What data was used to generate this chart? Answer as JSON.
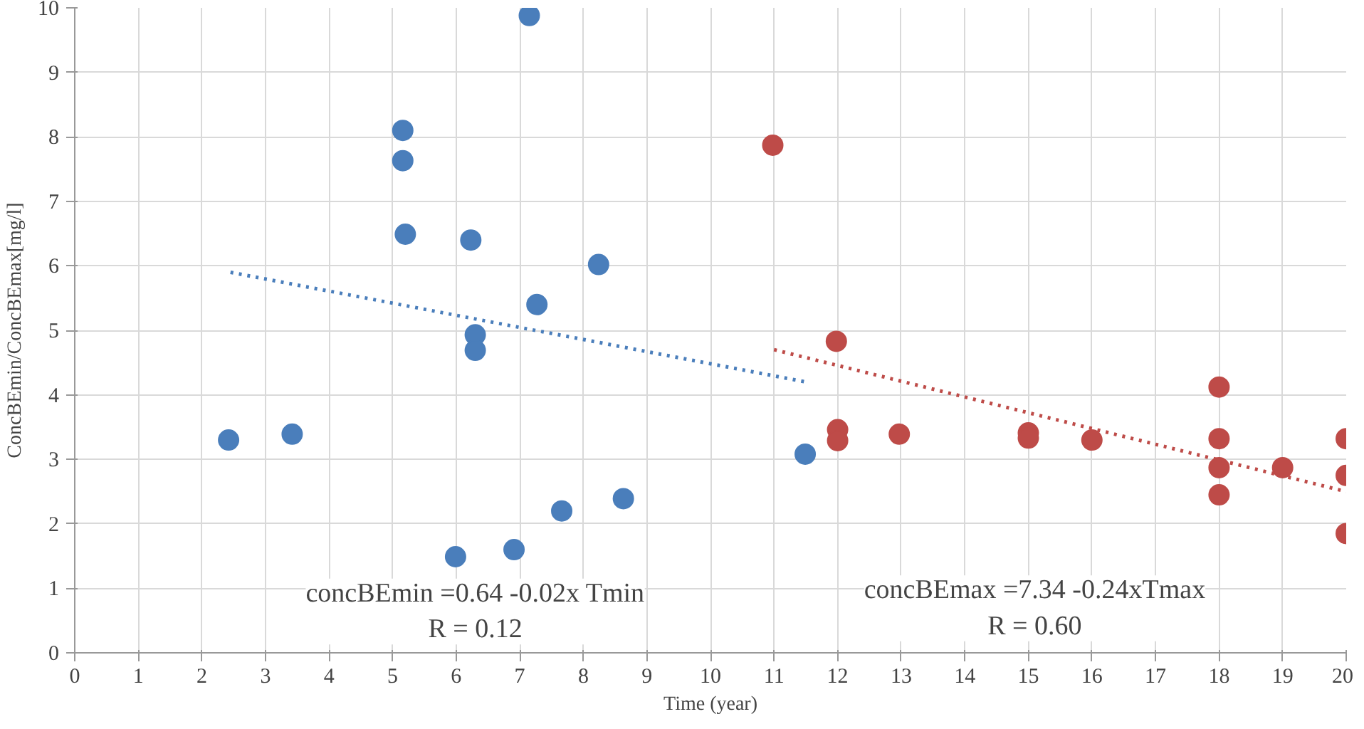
{
  "chart_data": {
    "type": "scatter",
    "xlabel": "Time (year)",
    "ylabel": "ConcBEmin/ConcBEmax[mg/l]",
    "xlim": [
      0,
      20
    ],
    "ylim": [
      0,
      10
    ],
    "xticks": [
      0,
      1,
      2,
      3,
      4,
      5,
      6,
      7,
      8,
      9,
      10,
      11,
      12,
      13,
      14,
      15,
      16,
      17,
      18,
      19,
      20
    ],
    "yticks": [
      0,
      1,
      2,
      3,
      4,
      5,
      6,
      7,
      8,
      9,
      10
    ],
    "grid": true,
    "marker": "circle",
    "series": [
      {
        "color": "#4a7ebb",
        "x": [
          2.42,
          3.42,
          5.16,
          5.16,
          5.2,
          6.23,
          6.3,
          6.3,
          7.27,
          7.15,
          8.24,
          5.99,
          6.91,
          7.66,
          8.63,
          11.49
        ],
        "values": [
          3.3,
          3.39,
          8.1,
          7.63,
          6.49,
          6.4,
          4.93,
          4.69,
          5.4,
          9.88,
          6.02,
          1.49,
          1.6,
          2.2,
          2.39,
          3.08
        ]
      },
      {
        "color": "#be4b48",
        "x": [
          10.98,
          11.98,
          12,
          12,
          12.97,
          15,
          15,
          16,
          18,
          18,
          18,
          18,
          19,
          20,
          20,
          20
        ],
        "values": [
          7.87,
          4.83,
          3.46,
          3.29,
          3.39,
          3.41,
          3.33,
          3.3,
          4.12,
          3.32,
          2.87,
          2.45,
          2.87,
          3.32,
          2.75,
          1.85
        ]
      },
      {
        "type": "line",
        "color": "#4a7ebb",
        "line_style": "dotted",
        "marker": "none",
        "x": [
          2.45,
          11.5
        ],
        "values": [
          5.9,
          4.2
        ]
      },
      {
        "type": "line",
        "color": "#be4b48",
        "line_style": "dotted",
        "marker": "none",
        "x": [
          11,
          20
        ],
        "values": [
          4.7,
          2.5
        ]
      }
    ],
    "annotations": [
      "concBEmin =0.64 -0.02x Tmin\nR = 0.12",
      "concBEmax =7.34 -0.24xTmax\nR = 0.60"
    ]
  }
}
